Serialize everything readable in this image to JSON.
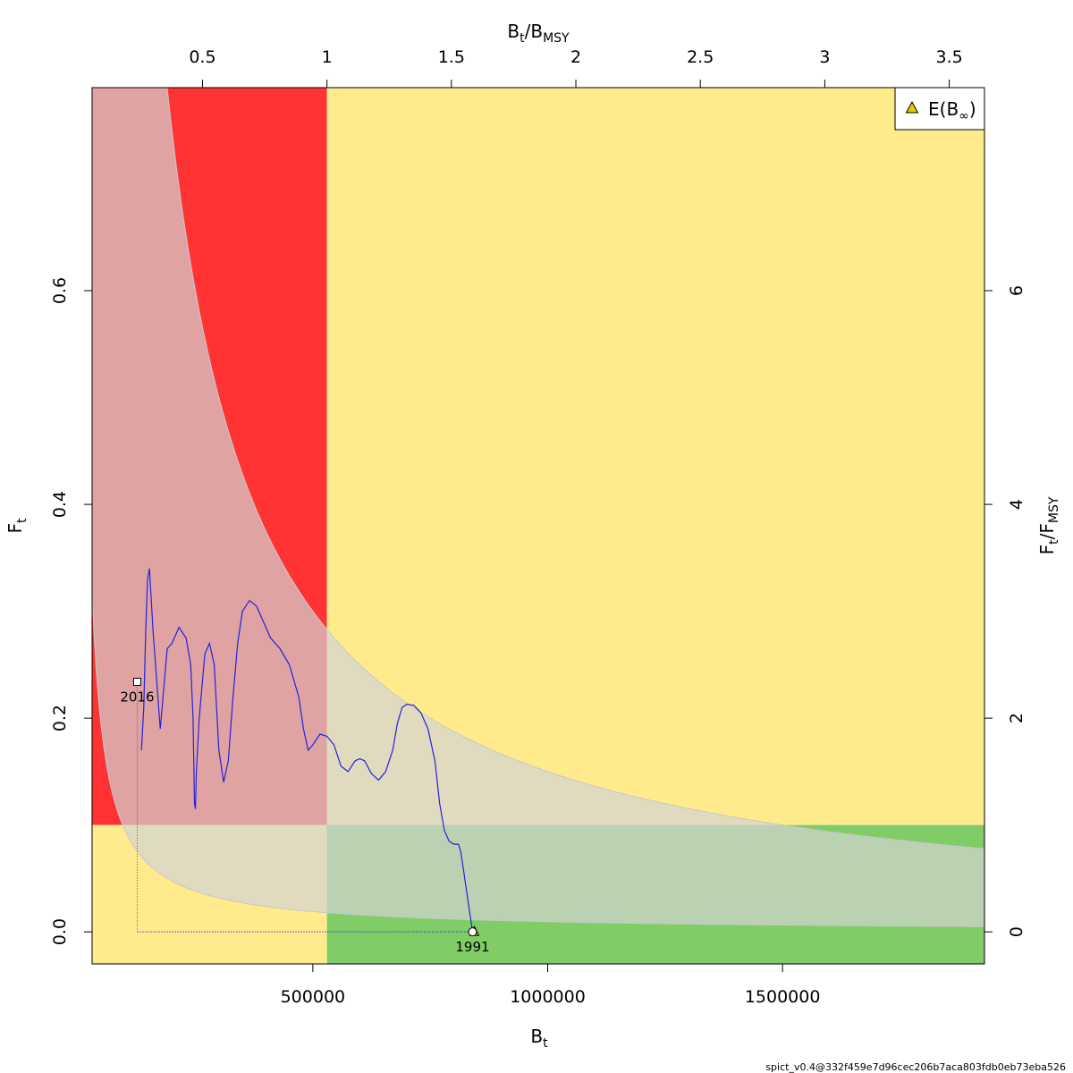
{
  "chart_data": {
    "type": "line",
    "xlabel": "B",
    "xlabel_sub": "t",
    "ylabel": "F",
    "ylabel_sub": "t",
    "top_label_num": "B",
    "top_label_num_sub": "t",
    "top_label_den": "B",
    "top_label_den_sub": "MSY",
    "right_label_num": "F",
    "right_label_num_sub": "t",
    "right_label_den": "F",
    "right_label_den_sub": "MSY",
    "xlim": [
      30000,
      1930000
    ],
    "ylim": [
      -0.03,
      0.79
    ],
    "x_ticks": [
      500000,
      1000000,
      1500000
    ],
    "x_tick_labels": [
      "500000",
      "1000000",
      "1500000"
    ],
    "y_ticks": [
      0.0,
      0.2,
      0.4,
      0.6
    ],
    "y_tick_labels": [
      "0.0",
      "0.2",
      "0.4",
      "0.6"
    ],
    "bmsy": 530000,
    "fmsy": 0.1,
    "top_ticks": [
      0.5,
      1,
      1.5,
      2,
      2.5,
      3,
      3.5
    ],
    "top_tick_labels": [
      "0.5",
      "1",
      "1.5",
      "2",
      "2.5",
      "3",
      "3.5"
    ],
    "right_ticks": [
      0,
      2,
      4,
      6
    ],
    "right_tick_labels": [
      "0",
      "2",
      "4",
      "6"
    ],
    "zone_colors": {
      "red": "#ff3333",
      "yellow": "#ffeb8c",
      "green": "#80cc66",
      "band": "#d3d3d3",
      "trajectory": "#2222dd"
    },
    "band_constants": {
      "upper": 150000,
      "lower": 9500
    },
    "trajectory": {
      "x": [
        840000,
        830000,
        820000,
        815000,
        810000,
        800000,
        790000,
        780000,
        770000,
        760000,
        745000,
        730000,
        715000,
        700000,
        690000,
        680000,
        670000,
        655000,
        640000,
        625000,
        610000,
        600000,
        590000,
        575000,
        560000,
        545000,
        530000,
        515000,
        500000,
        490000,
        480000,
        470000,
        450000,
        430000,
        410000,
        395000,
        380000,
        365000,
        350000,
        340000,
        330000,
        320000,
        310000,
        300000,
        290000,
        280000,
        270000,
        258000,
        252000,
        250000,
        248000,
        245000,
        240000,
        230000,
        215000,
        200000,
        190000,
        175000,
        160000,
        152000,
        148000,
        144000,
        140000,
        135000
      ],
      "y": [
        0.0,
        0.03,
        0.06,
        0.075,
        0.082,
        0.082,
        0.085,
        0.095,
        0.12,
        0.16,
        0.19,
        0.205,
        0.212,
        0.213,
        0.21,
        0.195,
        0.17,
        0.15,
        0.142,
        0.148,
        0.16,
        0.162,
        0.16,
        0.15,
        0.155,
        0.175,
        0.183,
        0.185,
        0.175,
        0.17,
        0.19,
        0.22,
        0.25,
        0.265,
        0.275,
        0.29,
        0.305,
        0.31,
        0.3,
        0.27,
        0.22,
        0.16,
        0.14,
        0.17,
        0.25,
        0.27,
        0.26,
        0.2,
        0.15,
        0.115,
        0.12,
        0.2,
        0.25,
        0.275,
        0.285,
        0.27,
        0.265,
        0.19,
        0.28,
        0.34,
        0.33,
        0.28,
        0.21,
        0.17
      ]
    },
    "points": [
      {
        "label": "1991",
        "x": 840000,
        "y": 0.0
      },
      {
        "label": "2016",
        "x": 126000,
        "y": 0.234
      }
    ],
    "dotted_reference": {
      "x": 126000,
      "y": 0.0
    },
    "legend": {
      "label": "E(B",
      "label_symbol": "∞",
      "label_close": ")",
      "marker_color": "#e6c800",
      "position": "top-right"
    },
    "footer": "spict_v0.4@332f459e7d96cec206b7aca803fdb0eb73eba526"
  }
}
